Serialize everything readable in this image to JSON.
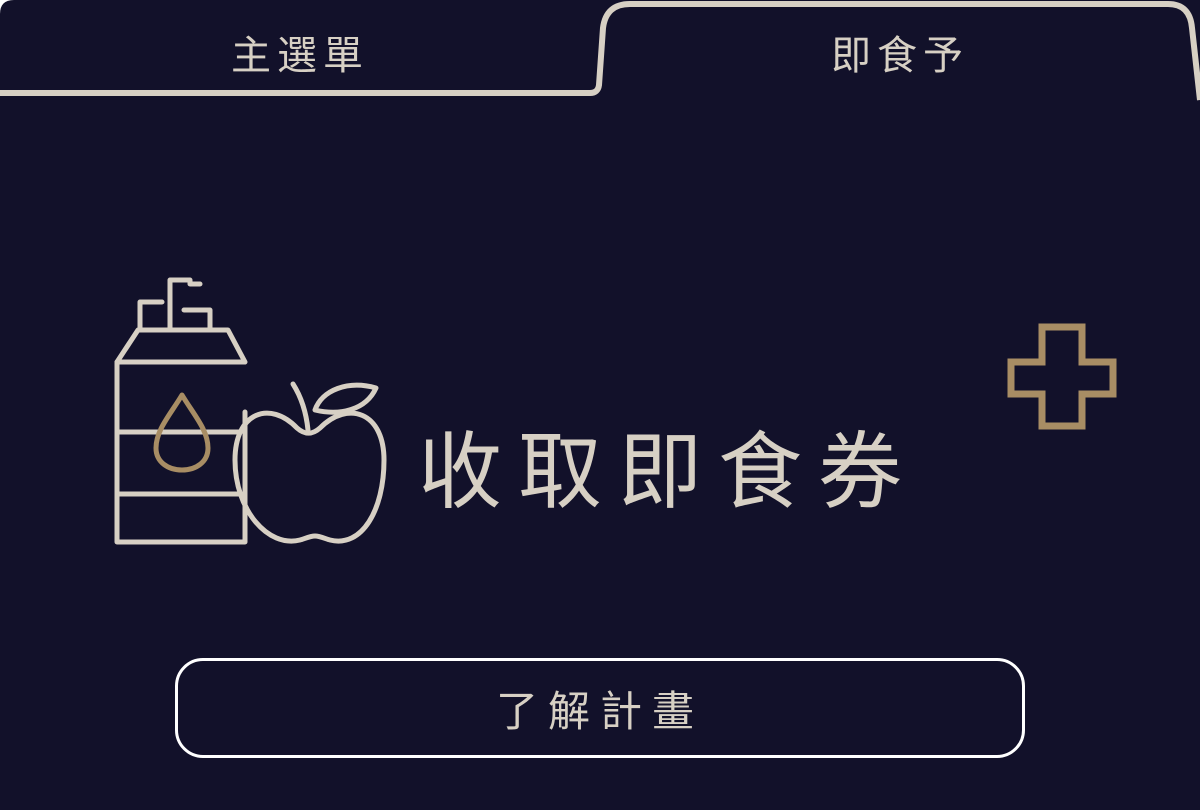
{
  "colors": {
    "background": "#12112a",
    "outline": "#d7d0c4",
    "accent_gold": "#a88d64",
    "button_border": "#ffffff"
  },
  "tabs": [
    {
      "label": "主選單",
      "active": false
    },
    {
      "label": "即食予",
      "active": true
    }
  ],
  "main": {
    "headline": "收取即食券",
    "illustration_icons": [
      "juice-carton-icon",
      "apple-icon",
      "plus-icon"
    ]
  },
  "cta": {
    "label": "了解計畫"
  }
}
